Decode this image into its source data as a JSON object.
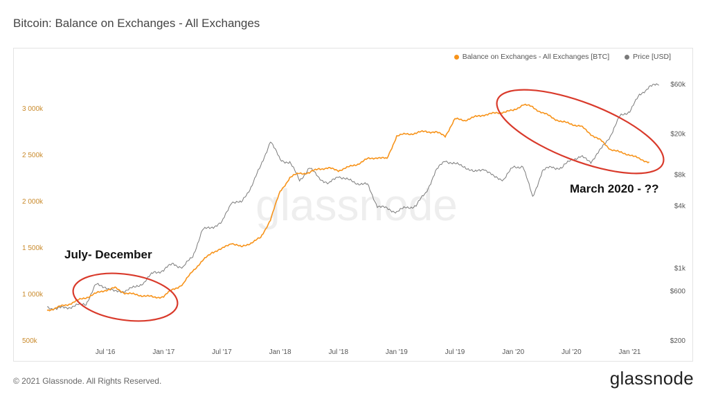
{
  "page": {
    "title": "Bitcoin: Balance on Exchanges - All Exchanges",
    "footer": "© 2021 Glassnode. All Rights Reserved.",
    "brand": "glassnode",
    "watermark": "glassnode"
  },
  "colors": {
    "balance": "#f7931a",
    "price": "#7a7a7a",
    "annotation": "#d93a2b"
  },
  "annotations": {
    "left": "July- December",
    "right": "March 2020 - ??"
  },
  "chart_data": {
    "type": "line",
    "title": "Bitcoin: Balance on Exchanges - All Exchanges",
    "x_ticks": [
      "Jul '16",
      "Jan '17",
      "Jul '17",
      "Jan '18",
      "Jul '18",
      "Jan '19",
      "Jul '19",
      "Jan '20",
      "Jul '20",
      "Jan '21"
    ],
    "y_left": {
      "ticks": [
        "500k",
        "1 000k",
        "1 500k",
        "2 000k",
        "2 500k",
        "3 000k"
      ],
      "range": [
        500000,
        3300000
      ]
    },
    "y_right": {
      "ticks": [
        "$200",
        "$600",
        "$1k",
        "$4k",
        "$8k",
        "$20k",
        "$60k"
      ],
      "scale": "log"
    },
    "legend_position": "top-right",
    "series": [
      {
        "name": "Balance on Exchanges - All Exchanges [BTC]",
        "axis": "left",
        "points": [
          [
            "2016-01",
            820000
          ],
          [
            "2016-02",
            850000
          ],
          [
            "2016-03",
            880000
          ],
          [
            "2016-04",
            920000
          ],
          [
            "2016-05",
            960000
          ],
          [
            "2016-06",
            1000000
          ],
          [
            "2016-07",
            1040000
          ],
          [
            "2016-08",
            1060000
          ],
          [
            "2016-09",
            1010000
          ],
          [
            "2016-10",
            990000
          ],
          [
            "2016-11",
            980000
          ],
          [
            "2016-12",
            960000
          ],
          [
            "2017-01",
            970000
          ],
          [
            "2017-02",
            1050000
          ],
          [
            "2017-03",
            1100000
          ],
          [
            "2017-04",
            1250000
          ],
          [
            "2017-05",
            1350000
          ],
          [
            "2017-06",
            1450000
          ],
          [
            "2017-07",
            1480000
          ],
          [
            "2017-08",
            1550000
          ],
          [
            "2017-09",
            1500000
          ],
          [
            "2017-10",
            1550000
          ],
          [
            "2017-11",
            1600000
          ],
          [
            "2017-12",
            1800000
          ],
          [
            "2018-01",
            2100000
          ],
          [
            "2018-02",
            2250000
          ],
          [
            "2018-03",
            2300000
          ],
          [
            "2018-04",
            2300000
          ],
          [
            "2018-05",
            2350000
          ],
          [
            "2018-06",
            2350000
          ],
          [
            "2018-07",
            2330000
          ],
          [
            "2018-08",
            2360000
          ],
          [
            "2018-09",
            2400000
          ],
          [
            "2018-10",
            2450000
          ],
          [
            "2018-11",
            2470000
          ],
          [
            "2018-12",
            2450000
          ],
          [
            "2019-01",
            2700000
          ],
          [
            "2019-02",
            2720000
          ],
          [
            "2019-03",
            2730000
          ],
          [
            "2019-04",
            2750000
          ],
          [
            "2019-05",
            2740000
          ],
          [
            "2019-06",
            2700000
          ],
          [
            "2019-07",
            2880000
          ],
          [
            "2019-08",
            2870000
          ],
          [
            "2019-09",
            2900000
          ],
          [
            "2019-10",
            2930000
          ],
          [
            "2019-11",
            2940000
          ],
          [
            "2019-12",
            2960000
          ],
          [
            "2020-01",
            2970000
          ],
          [
            "2020-02",
            3040000
          ],
          [
            "2020-03",
            3010000
          ],
          [
            "2020-04",
            2950000
          ],
          [
            "2020-05",
            2900000
          ],
          [
            "2020-06",
            2850000
          ],
          [
            "2020-07",
            2830000
          ],
          [
            "2020-08",
            2800000
          ],
          [
            "2020-09",
            2720000
          ],
          [
            "2020-10",
            2650000
          ],
          [
            "2020-11",
            2560000
          ],
          [
            "2020-12",
            2520000
          ],
          [
            "2021-01",
            2500000
          ],
          [
            "2021-02",
            2450000
          ],
          [
            "2021-03",
            2420000
          ]
        ]
      },
      {
        "name": "Price [USD]",
        "axis": "right",
        "points": [
          [
            "2016-01",
            420
          ],
          [
            "2016-02",
            400
          ],
          [
            "2016-03",
            415
          ],
          [
            "2016-04",
            430
          ],
          [
            "2016-05",
            450
          ],
          [
            "2016-06",
            680
          ],
          [
            "2016-07",
            660
          ],
          [
            "2016-08",
            580
          ],
          [
            "2016-09",
            605
          ],
          [
            "2016-10",
            640
          ],
          [
            "2016-11",
            730
          ],
          [
            "2016-12",
            900
          ],
          [
            "2017-01",
            950
          ],
          [
            "2017-02",
            1100
          ],
          [
            "2017-03",
            1000
          ],
          [
            "2017-04",
            1300
          ],
          [
            "2017-05",
            2300
          ],
          [
            "2017-06",
            2500
          ],
          [
            "2017-07",
            2700
          ],
          [
            "2017-08",
            4400
          ],
          [
            "2017-09",
            4200
          ],
          [
            "2017-10",
            6100
          ],
          [
            "2017-11",
            9500
          ],
          [
            "2017-12",
            17000
          ],
          [
            "2018-01",
            11000
          ],
          [
            "2018-02",
            10500
          ],
          [
            "2018-03",
            7000
          ],
          [
            "2018-04",
            9200
          ],
          [
            "2018-05",
            7500
          ],
          [
            "2018-06",
            6400
          ],
          [
            "2018-07",
            7800
          ],
          [
            "2018-08",
            7000
          ],
          [
            "2018-09",
            6600
          ],
          [
            "2018-10",
            6300
          ],
          [
            "2018-11",
            4000
          ],
          [
            "2018-12",
            3700
          ],
          [
            "2019-01",
            3500
          ],
          [
            "2019-02",
            3800
          ],
          [
            "2019-03",
            4000
          ],
          [
            "2019-04",
            5300
          ],
          [
            "2019-05",
            8500
          ],
          [
            "2019-06",
            11000
          ],
          [
            "2019-07",
            10000
          ],
          [
            "2019-08",
            9600
          ],
          [
            "2019-09",
            8300
          ],
          [
            "2019-10",
            9200
          ],
          [
            "2019-11",
            7500
          ],
          [
            "2019-12",
            7200
          ],
          [
            "2020-01",
            9300
          ],
          [
            "2020-02",
            9700
          ],
          [
            "2020-03",
            4800
          ],
          [
            "2020-04",
            8600
          ],
          [
            "2020-05",
            9500
          ],
          [
            "2020-06",
            9100
          ],
          [
            "2020-07",
            11300
          ],
          [
            "2020-08",
            11700
          ],
          [
            "2020-09",
            10700
          ],
          [
            "2020-10",
            13700
          ],
          [
            "2020-11",
            19000
          ],
          [
            "2020-12",
            29000
          ],
          [
            "2021-01",
            33000
          ],
          [
            "2021-02",
            46000
          ],
          [
            "2021-03",
            57000
          ],
          [
            "2021-04",
            58000
          ]
        ]
      }
    ]
  }
}
